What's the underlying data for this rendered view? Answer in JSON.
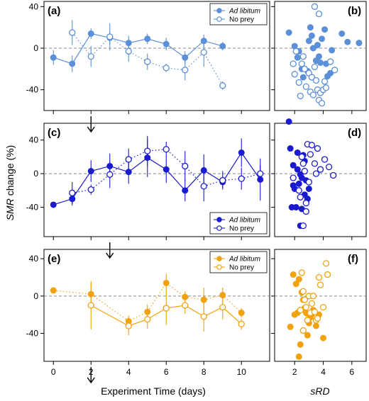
{
  "figure": {
    "y_label_italic": "SMR",
    "y_label_rest": " change (%)",
    "x_label": "Experiment Time (days)",
    "srd_label": "sRD"
  },
  "legend": {
    "ad_libitum": "Ad libitum",
    "no_prey": "No prey"
  },
  "chart_data": [
    {
      "panel": "(a)",
      "type": "line",
      "color": "#5b8fd9",
      "xlim": [
        -0.5,
        11.5
      ],
      "ylim": [
        -60,
        45
      ],
      "yticks": [
        -40,
        0,
        40
      ],
      "xticks": [
        0,
        2,
        4,
        6,
        8,
        10
      ],
      "arrow_day": 2,
      "legend_position": "top-right",
      "series": [
        {
          "name": "Ad libitum",
          "filled": true,
          "line": "solid",
          "points": [
            [
              0,
              -9,
              7
            ],
            [
              1,
              -15,
              8
            ],
            [
              2,
              14,
              5
            ],
            [
              3,
              10,
              6
            ],
            [
              4,
              5,
              7
            ],
            [
              5,
              9,
              5
            ],
            [
              6,
              4,
              6
            ],
            [
              7,
              -9,
              6
            ],
            [
              8,
              7,
              6
            ],
            [
              9,
              2,
              4
            ]
          ]
        },
        {
          "name": "No prey",
          "filled": false,
          "line": "dotted",
          "points": [
            [
              1,
              15,
              12
            ],
            [
              2,
              -8,
              10
            ],
            [
              3,
              11,
              13
            ],
            [
              4,
              -3,
              10
            ],
            [
              5,
              -13,
              8
            ],
            [
              6,
              -19,
              4
            ],
            [
              7,
              -21,
              10
            ],
            [
              8,
              -4,
              14
            ],
            [
              9,
              -36,
              4
            ]
          ]
        }
      ]
    },
    {
      "panel": "(c)",
      "type": "line",
      "color": "#1a1ad0",
      "xlim": [
        -0.5,
        11.5
      ],
      "ylim": [
        -75,
        60
      ],
      "yticks": [
        -40,
        0,
        40
      ],
      "xticks": [
        0,
        2,
        4,
        6,
        8,
        10
      ],
      "arrow_day": 3,
      "legend_position": "bottom-right",
      "series": [
        {
          "name": "Ad libitum",
          "filled": true,
          "line": "solid",
          "points": [
            [
              0,
              -37,
              3
            ],
            [
              1,
              -30,
              8
            ],
            [
              2,
              3,
              13
            ],
            [
              3,
              9,
              15
            ],
            [
              4,
              2,
              14
            ],
            [
              5,
              19,
              23
            ],
            [
              6,
              5,
              16
            ],
            [
              7,
              -20,
              13
            ],
            [
              8,
              4,
              19
            ],
            [
              9,
              -10,
              7
            ],
            [
              10,
              25,
              17
            ],
            [
              11,
              -7,
              25
            ]
          ]
        },
        {
          "name": "No prey",
          "filled": false,
          "line": "dotted",
          "points": [
            [
              1,
              -23,
              13
            ],
            [
              2,
              -19,
              6
            ],
            [
              3,
              -1,
              16
            ],
            [
              4,
              17,
              13
            ],
            [
              5,
              27,
              18
            ],
            [
              6,
              29,
              9
            ],
            [
              7,
              9,
              18
            ],
            [
              8,
              -15,
              18
            ],
            [
              9,
              -8,
              11
            ],
            [
              10,
              -6,
              13
            ],
            [
              11,
              0,
              10
            ]
          ]
        }
      ]
    },
    {
      "panel": "(e)",
      "type": "line",
      "color": "#f2a20f",
      "xlim": [
        -0.5,
        11.5
      ],
      "ylim": [
        -70,
        50
      ],
      "yticks": [
        -40,
        0,
        40
      ],
      "xticks": [
        0,
        2,
        4,
        6,
        8,
        10
      ],
      "arrow_day": 2,
      "legend_position": "top-right",
      "series": [
        {
          "name": "Ad libitum",
          "filled": true,
          "line": "dotted",
          "points": [
            [
              0,
              6,
              2
            ],
            [
              2,
              2,
              12
            ],
            [
              4,
              -27,
              6
            ],
            [
              5,
              -17,
              8
            ],
            [
              6,
              14,
              10
            ],
            [
              7,
              -1,
              6
            ],
            [
              8,
              -4,
              13
            ],
            [
              9,
              1,
              8
            ],
            [
              10,
              -18,
              5
            ]
          ]
        },
        {
          "name": "No prey",
          "filled": false,
          "line": "solid",
          "points": [
            [
              2,
              -10,
              26
            ],
            [
              4,
              -32,
              10
            ],
            [
              5,
              -25,
              10
            ],
            [
              6,
              -13,
              18
            ],
            [
              7,
              -10,
              9
            ],
            [
              8,
              -22,
              16
            ],
            [
              9,
              -12,
              13
            ],
            [
              10,
              -30,
              6
            ]
          ]
        }
      ]
    },
    {
      "panel": "(b)",
      "type": "scatter",
      "color": "#5b8fd9",
      "xlim": [
        0.6,
        7.0
      ],
      "ylim": [
        -60,
        45
      ],
      "yticks": [
        -40,
        0,
        40
      ],
      "xticks": [
        2,
        4,
        6
      ],
      "series": [
        {
          "name": "Ad libitum",
          "filled": true,
          "points": [
            [
              1.6,
              15
            ],
            [
              2.0,
              2
            ],
            [
              2.2,
              -9
            ],
            [
              2.3,
              -3
            ],
            [
              2.5,
              -20
            ],
            [
              2.6,
              -28
            ],
            [
              2.9,
              -22
            ],
            [
              3.0,
              7
            ],
            [
              3.1,
              20
            ],
            [
              3.2,
              12
            ],
            [
              3.3,
              0
            ],
            [
              3.5,
              -12
            ],
            [
              3.6,
              3
            ],
            [
              3.7,
              -8
            ],
            [
              3.8,
              -14
            ],
            [
              3.9,
              9
            ],
            [
              4.1,
              18
            ],
            [
              4.3,
              -27
            ],
            [
              4.5,
              -24
            ],
            [
              4.6,
              -2
            ],
            [
              5.3,
              14
            ],
            [
              5.7,
              6
            ],
            [
              6.5,
              5
            ],
            [
              4.2,
              -15
            ]
          ]
        },
        {
          "name": "No prey",
          "filled": false,
          "points": [
            [
              1.9,
              -15
            ],
            [
              2.0,
              -25
            ],
            [
              2.1,
              -3
            ],
            [
              2.3,
              -33
            ],
            [
              2.4,
              -46
            ],
            [
              2.5,
              -15
            ],
            [
              2.6,
              -8
            ],
            [
              2.7,
              -20
            ],
            [
              2.8,
              -37
            ],
            [
              3.0,
              -24
            ],
            [
              3.1,
              -42
            ],
            [
              3.2,
              -28
            ],
            [
              3.3,
              -45
            ],
            [
              3.4,
              -18
            ],
            [
              3.5,
              -31
            ],
            [
              3.6,
              -40
            ],
            [
              3.7,
              -50
            ],
            [
              3.8,
              -43
            ],
            [
              3.9,
              -53
            ],
            [
              4.0,
              -40
            ],
            [
              4.2,
              -38
            ],
            [
              4.5,
              -13
            ],
            [
              4.8,
              -21
            ],
            [
              3.4,
              40
            ],
            [
              3.7,
              33
            ],
            [
              4.1,
              -32
            ]
          ]
        }
      ]
    },
    {
      "panel": "(d)",
      "type": "scatter",
      "color": "#1a1ad0",
      "xlim": [
        0.6,
        7.0
      ],
      "ylim": [
        -75,
        60
      ],
      "yticks": [
        -40,
        0,
        40
      ],
      "xticks": [
        2,
        4,
        6
      ],
      "series": [
        {
          "name": "Ad libitum",
          "filled": true,
          "points": [
            [
              1.6,
              62
            ],
            [
              1.7,
              30
            ],
            [
              1.8,
              -40
            ],
            [
              1.9,
              10
            ],
            [
              2.0,
              -18
            ],
            [
              2.1,
              -40
            ],
            [
              2.2,
              5
            ],
            [
              2.3,
              -12
            ],
            [
              2.4,
              -62
            ],
            [
              2.5,
              -5
            ],
            [
              2.6,
              22
            ],
            [
              2.7,
              -25
            ],
            [
              2.8,
              -8
            ],
            [
              2.9,
              -30
            ],
            [
              3.0,
              -18
            ],
            [
              2.2,
              25
            ],
            [
              2.5,
              -42
            ],
            [
              2.7,
              15
            ],
            [
              1.9,
              -14
            ],
            [
              2.4,
              -1
            ]
          ]
        },
        {
          "name": "No prey",
          "filled": false,
          "points": [
            [
              1.9,
              -5
            ],
            [
              2.3,
              -20
            ],
            [
              2.5,
              20
            ],
            [
              2.6,
              12
            ],
            [
              2.6,
              -62
            ],
            [
              2.7,
              3
            ],
            [
              2.8,
              -35
            ],
            [
              2.9,
              35
            ],
            [
              3.0,
              -10
            ],
            [
              3.1,
              23
            ],
            [
              3.2,
              34
            ],
            [
              3.4,
              12
            ],
            [
              3.5,
              0
            ],
            [
              3.6,
              30
            ],
            [
              3.8,
              5
            ],
            [
              4.1,
              17
            ],
            [
              4.4,
              8
            ],
            [
              4.7,
              -2
            ],
            [
              2.4,
              -28
            ],
            [
              2.8,
              -45
            ]
          ]
        }
      ]
    },
    {
      "panel": "(f)",
      "type": "scatter",
      "color": "#f2a20f",
      "xlim": [
        0.6,
        7.0
      ],
      "ylim": [
        -70,
        50
      ],
      "yticks": [
        -40,
        0,
        40
      ],
      "xticks": [
        2,
        4,
        6
      ],
      "series": [
        {
          "name": "Ad libitum",
          "filled": true,
          "points": [
            [
              1.7,
              -33
            ],
            [
              1.9,
              23
            ],
            [
              2.0,
              -20
            ],
            [
              2.1,
              13
            ],
            [
              2.2,
              -18
            ],
            [
              2.3,
              -65
            ],
            [
              2.4,
              -52
            ],
            [
              2.5,
              4
            ],
            [
              2.6,
              -4
            ],
            [
              2.7,
              -13
            ],
            [
              2.8,
              -18
            ],
            [
              2.9,
              -42
            ],
            [
              3.0,
              -29
            ],
            [
              3.2,
              -20
            ],
            [
              3.3,
              -15
            ],
            [
              3.5,
              -32
            ],
            [
              3.7,
              -20
            ],
            [
              4.0,
              -45
            ],
            [
              2.3,
              18
            ],
            [
              2.9,
              -19
            ],
            [
              3.1,
              -23
            ]
          ]
        },
        {
          "name": "No prey",
          "filled": false,
          "points": [
            [
              2.4,
              -15
            ],
            [
              2.5,
              25
            ],
            [
              2.6,
              5
            ],
            [
              2.6,
              -37
            ],
            [
              2.8,
              -12
            ],
            [
              2.9,
              -26
            ],
            [
              3.0,
              0
            ],
            [
              3.1,
              -18
            ],
            [
              3.2,
              -8
            ],
            [
              3.3,
              0
            ],
            [
              3.4,
              -17
            ],
            [
              3.5,
              -26
            ],
            [
              3.6,
              -24
            ],
            [
              3.7,
              20
            ],
            [
              3.8,
              12
            ],
            [
              4.0,
              -12
            ],
            [
              4.2,
              35
            ],
            [
              4.3,
              23
            ],
            [
              2.7,
              -4
            ]
          ]
        }
      ]
    }
  ]
}
